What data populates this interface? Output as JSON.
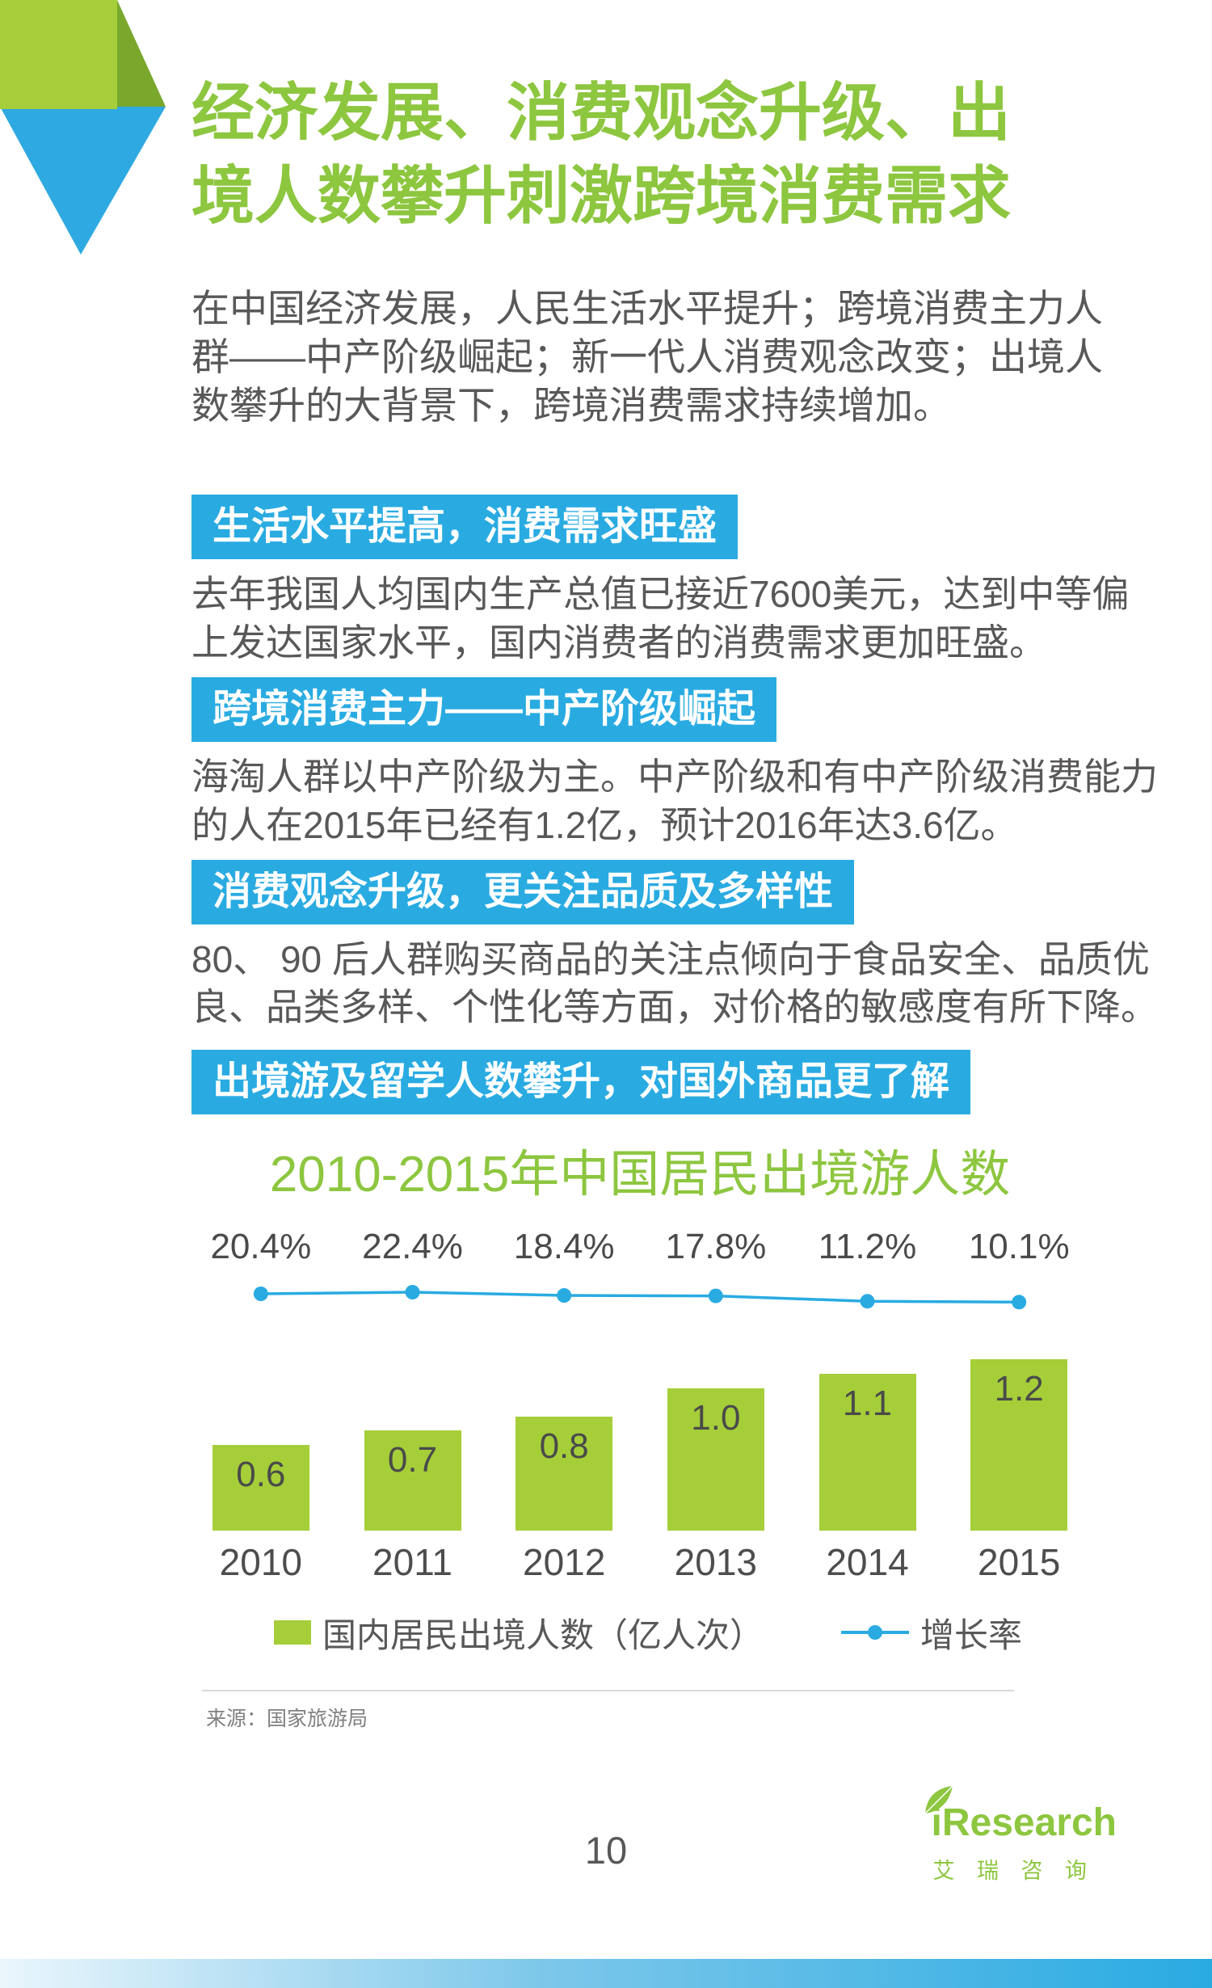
{
  "page": {
    "title_lines": [
      "经济发展、消费观念升级、出",
      "境人数攀升刺激跨境消费需求"
    ],
    "intro_lines": [
      "在中国经济发展，人民生活水平提升；跨境消费主力人",
      "群——中产阶级崛起；新一代人消费观念改变；出境人",
      "数攀升的大背景下，跨境消费需求持续增加。"
    ],
    "page_number": "10",
    "source": "来源：国家旅游局"
  },
  "sections": [
    {
      "heading": "生活水平提高，消费需求旺盛",
      "body_lines": [
        "去年我国人均国内生产总值已接近7600美元，达到中等偏",
        "上发达国家水平，国内消费者的消费需求更加旺盛。"
      ]
    },
    {
      "heading": "跨境消费主力——中产阶级崛起",
      "body_lines": [
        "海淘人群以中产阶级为主。中产阶级和有中产阶级消费能力",
        "的人在2015年已经有1.2亿，预计2016年达3.6亿。"
      ]
    },
    {
      "heading": "消费观念升级，更关注品质及多样性",
      "body_lines": [
        "80、 90 后人群购买商品的关注点倾向于食品安全、品质优",
        "良、品类多样、个性化等方面，对价格的敏感度有所下降。"
      ]
    },
    {
      "heading": "出境游及留学人数攀升，对国外商品更了解",
      "body_lines": []
    }
  ],
  "chart_data": {
    "type": "bar",
    "title": "2010-2015年中国居民出境游人数",
    "categories": [
      "2010",
      "2011",
      "2012",
      "2013",
      "2014",
      "2015"
    ],
    "series": [
      {
        "name": "国内居民出境人数（亿人次）",
        "kind": "bar",
        "values": [
          0.6,
          0.7,
          0.8,
          1.0,
          1.1,
          1.2
        ]
      },
      {
        "name": "增长率",
        "kind": "line",
        "values": [
          20.4,
          22.4,
          18.4,
          17.8,
          11.2,
          10.1
        ],
        "unit": "%"
      }
    ],
    "value_labels_shown": true,
    "legend_position": "bottom",
    "grid": false,
    "source": "来源：国家旅游局"
  },
  "footer": {
    "brand": "iResearch",
    "brand_cn": "艾 瑞 咨 询"
  },
  "colors": {
    "title_green": "#8dc63f",
    "bar_green": "#a5ce39",
    "banner_blue": "#29abe2",
    "body_gray": "#595757"
  }
}
